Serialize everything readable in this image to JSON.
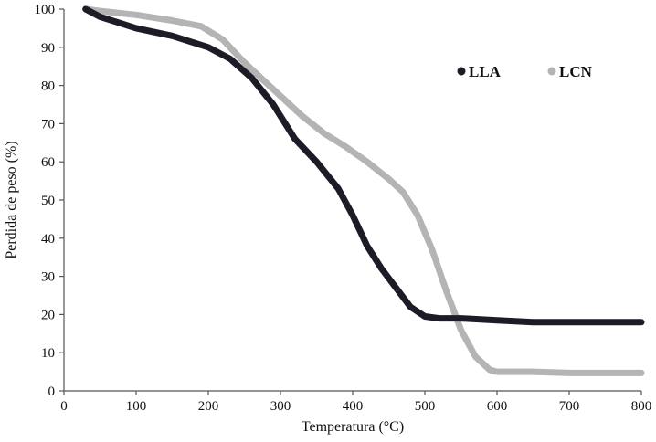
{
  "chart_data": {
    "type": "line",
    "xlabel": "Temperatura (°C)",
    "ylabel": "Perdida de peso (%)",
    "xlim": [
      0,
      800
    ],
    "ylim": [
      0,
      100
    ],
    "x_ticks": [
      0,
      100,
      200,
      300,
      400,
      500,
      600,
      700,
      800
    ],
    "y_ticks": [
      0,
      10,
      20,
      30,
      40,
      50,
      60,
      70,
      80,
      90,
      100
    ],
    "x_tick_labels": [
      "0",
      "100",
      "200",
      "300",
      "400",
      "500",
      "600",
      "700",
      "800"
    ],
    "y_tick_labels": [
      "0",
      "10",
      "20",
      "30",
      "40",
      "50",
      "60",
      "70",
      "80",
      "90",
      "100"
    ],
    "grid": false,
    "legend_position": "top-right",
    "series": [
      {
        "name": "LLA",
        "color": "#1c1c26",
        "x": [
          30,
          50,
          100,
          150,
          200,
          230,
          260,
          290,
          320,
          350,
          380,
          400,
          420,
          440,
          460,
          480,
          500,
          520,
          550,
          600,
          650,
          700,
          800
        ],
        "y": [
          100,
          98,
          95,
          93,
          90,
          87,
          82,
          75,
          66,
          60,
          53,
          46,
          38,
          32,
          27,
          22,
          19.5,
          19,
          19,
          18.5,
          18,
          18,
          18
        ]
      },
      {
        "name": "LCN",
        "color": "#b4b4b4",
        "x": [
          30,
          50,
          100,
          150,
          190,
          220,
          250,
          290,
          330,
          360,
          390,
          420,
          450,
          470,
          490,
          510,
          530,
          550,
          570,
          590,
          600,
          650,
          700,
          800
        ],
        "y": [
          100,
          99.5,
          98.5,
          97,
          95.5,
          92,
          86,
          79,
          72,
          67.5,
          64,
          60,
          55.5,
          52,
          46,
          37,
          26,
          16,
          9,
          5.5,
          5,
          5,
          4.7,
          4.7
        ]
      }
    ]
  }
}
